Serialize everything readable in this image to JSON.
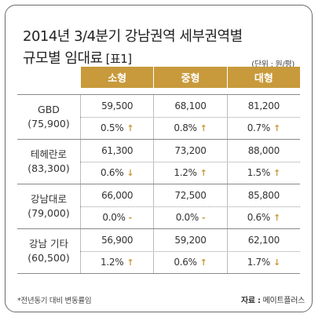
{
  "title": {
    "line1": "2014년 3/4분기 강남권역 세부권역별",
    "line2": "규모별 임대료",
    "tag": "[표1]"
  },
  "unit": "(단위 : 원/평)",
  "columns": [
    "소형",
    "중형",
    "대형"
  ],
  "rows": [
    {
      "name": "GBD",
      "avg": "(75,900)",
      "values": [
        "59,500",
        "68,100",
        "81,200"
      ],
      "changes": [
        {
          "text": "0.5%",
          "icon": "up-arrow-icon",
          "glyph": "↑"
        },
        {
          "text": "0.8%",
          "icon": "up-arrow-icon",
          "glyph": "↑"
        },
        {
          "text": "0.7%",
          "icon": "up-arrow-icon",
          "glyph": "↑"
        }
      ]
    },
    {
      "name": "테헤란로",
      "avg": "(83,300)",
      "values": [
        "61,300",
        "73,200",
        "88,000"
      ],
      "changes": [
        {
          "text": "0.6%",
          "icon": "down-arrow-icon",
          "glyph": "↓"
        },
        {
          "text": "1.2%",
          "icon": "up-arrow-icon",
          "glyph": "↑"
        },
        {
          "text": "1.5%",
          "icon": "up-arrow-icon",
          "glyph": "↑"
        }
      ]
    },
    {
      "name": "강남대로",
      "avg": "(79,000)",
      "values": [
        "66,000",
        "72,500",
        "85,800"
      ],
      "changes": [
        {
          "text": "0.0%",
          "icon": "dash-icon",
          "glyph": "-"
        },
        {
          "text": "0.0%",
          "icon": "dash-icon",
          "glyph": "-"
        },
        {
          "text": "0.6%",
          "icon": "up-arrow-icon",
          "glyph": "↑"
        }
      ]
    },
    {
      "name": "강남 기타",
      "avg": "(60,500)",
      "values": [
        "56,900",
        "59,200",
        "62,100"
      ],
      "changes": [
        {
          "text": "1.2%",
          "icon": "up-arrow-icon",
          "glyph": "↑"
        },
        {
          "text": "0.6%",
          "icon": "up-arrow-icon",
          "glyph": "↑"
        },
        {
          "text": "1.7%",
          "icon": "down-arrow-icon",
          "glyph": "↓"
        }
      ]
    }
  ],
  "footnote": "*전년동기 대비 변동률임",
  "source": {
    "label": "자료 :",
    "value": "메이트플러스"
  },
  "colors": {
    "accent": "#c89a3b",
    "border": "#6b6b6b"
  }
}
